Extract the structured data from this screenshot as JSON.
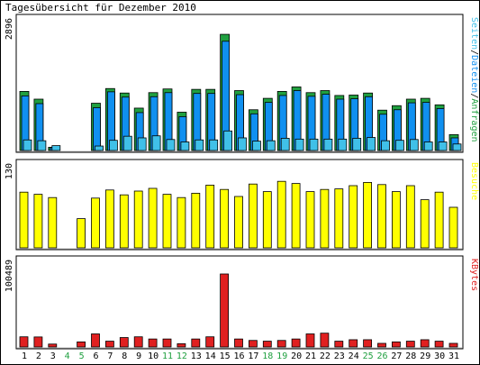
{
  "chart_data": [
    {
      "type": "bar",
      "title": "Tagesübersicht für Dezember 2010",
      "categories": [
        "1",
        "2",
        "3",
        "4",
        "5",
        "6",
        "7",
        "8",
        "9",
        "10",
        "11",
        "12",
        "13",
        "14",
        "15",
        "16",
        "17",
        "18",
        "19",
        "20",
        "21",
        "22",
        "23",
        "24",
        "25",
        "26",
        "27",
        "28",
        "29",
        "30",
        "31"
      ],
      "weekend_days": [
        "4",
        "5",
        "11",
        "12",
        "18",
        "19",
        "25",
        "26"
      ],
      "ylabel_right": [
        "Seiten",
        "Dateien",
        "Anfragen"
      ],
      "ymax_label": "2896",
      "ylim": [
        0,
        2896
      ],
      "series": [
        {
          "name": "Anfragen",
          "color": "#20a040",
          "values": [
            1450,
            1260,
            80,
            0,
            0,
            1160,
            1520,
            1410,
            1040,
            1420,
            1510,
            940,
            1500,
            1500,
            2850,
            1470,
            1000,
            1280,
            1450,
            1560,
            1420,
            1470,
            1350,
            1360,
            1410,
            990,
            1100,
            1260,
            1280,
            1120,
            390
          ]
        },
        {
          "name": "Dateien",
          "color": "#1090f0",
          "values": [
            1340,
            1150,
            70,
            0,
            0,
            1050,
            1440,
            1310,
            930,
            1320,
            1420,
            830,
            1400,
            1400,
            2680,
            1370,
            900,
            1180,
            1350,
            1470,
            1330,
            1380,
            1260,
            1270,
            1320,
            890,
            1000,
            1170,
            1180,
            1030,
            310
          ]
        },
        {
          "name": "Seiten",
          "color": "#40c0e8",
          "values": [
            260,
            240,
            120,
            0,
            0,
            110,
            250,
            350,
            310,
            360,
            270,
            210,
            260,
            260,
            480,
            310,
            230,
            240,
            300,
            280,
            280,
            280,
            280,
            300,
            320,
            240,
            250,
            270,
            210,
            210,
            160
          ]
        }
      ]
    },
    {
      "type": "bar",
      "ylabel_right": [
        "Besuche"
      ],
      "ymax_label": "130",
      "ylim": [
        0,
        130
      ],
      "series": [
        {
          "name": "Besuche",
          "color": "#ffff00",
          "values": [
            103,
            99,
            93,
            0,
            54,
            92,
            107,
            98,
            105,
            110,
            99,
            93,
            101,
            116,
            108,
            95,
            118,
            104,
            123,
            119,
            104,
            108,
            109,
            115,
            121,
            117,
            104,
            115,
            89,
            103,
            75
          ]
        }
      ]
    },
    {
      "type": "bar",
      "ylabel_right": [
        "KBytes"
      ],
      "ymax_label": "100489",
      "ylim": [
        0,
        100489
      ],
      "series": [
        {
          "name": "KBytes",
          "color": "#e02020",
          "values": [
            14000,
            13800,
            4000,
            0,
            7000,
            18000,
            8000,
            13000,
            14000,
            11000,
            11000,
            4500,
            11000,
            14000,
            100489,
            11000,
            9000,
            8000,
            9000,
            11000,
            18000,
            19000,
            8000,
            10000,
            10000,
            5000,
            7000,
            8000,
            10000,
            8000,
            5000
          ]
        }
      ]
    }
  ]
}
